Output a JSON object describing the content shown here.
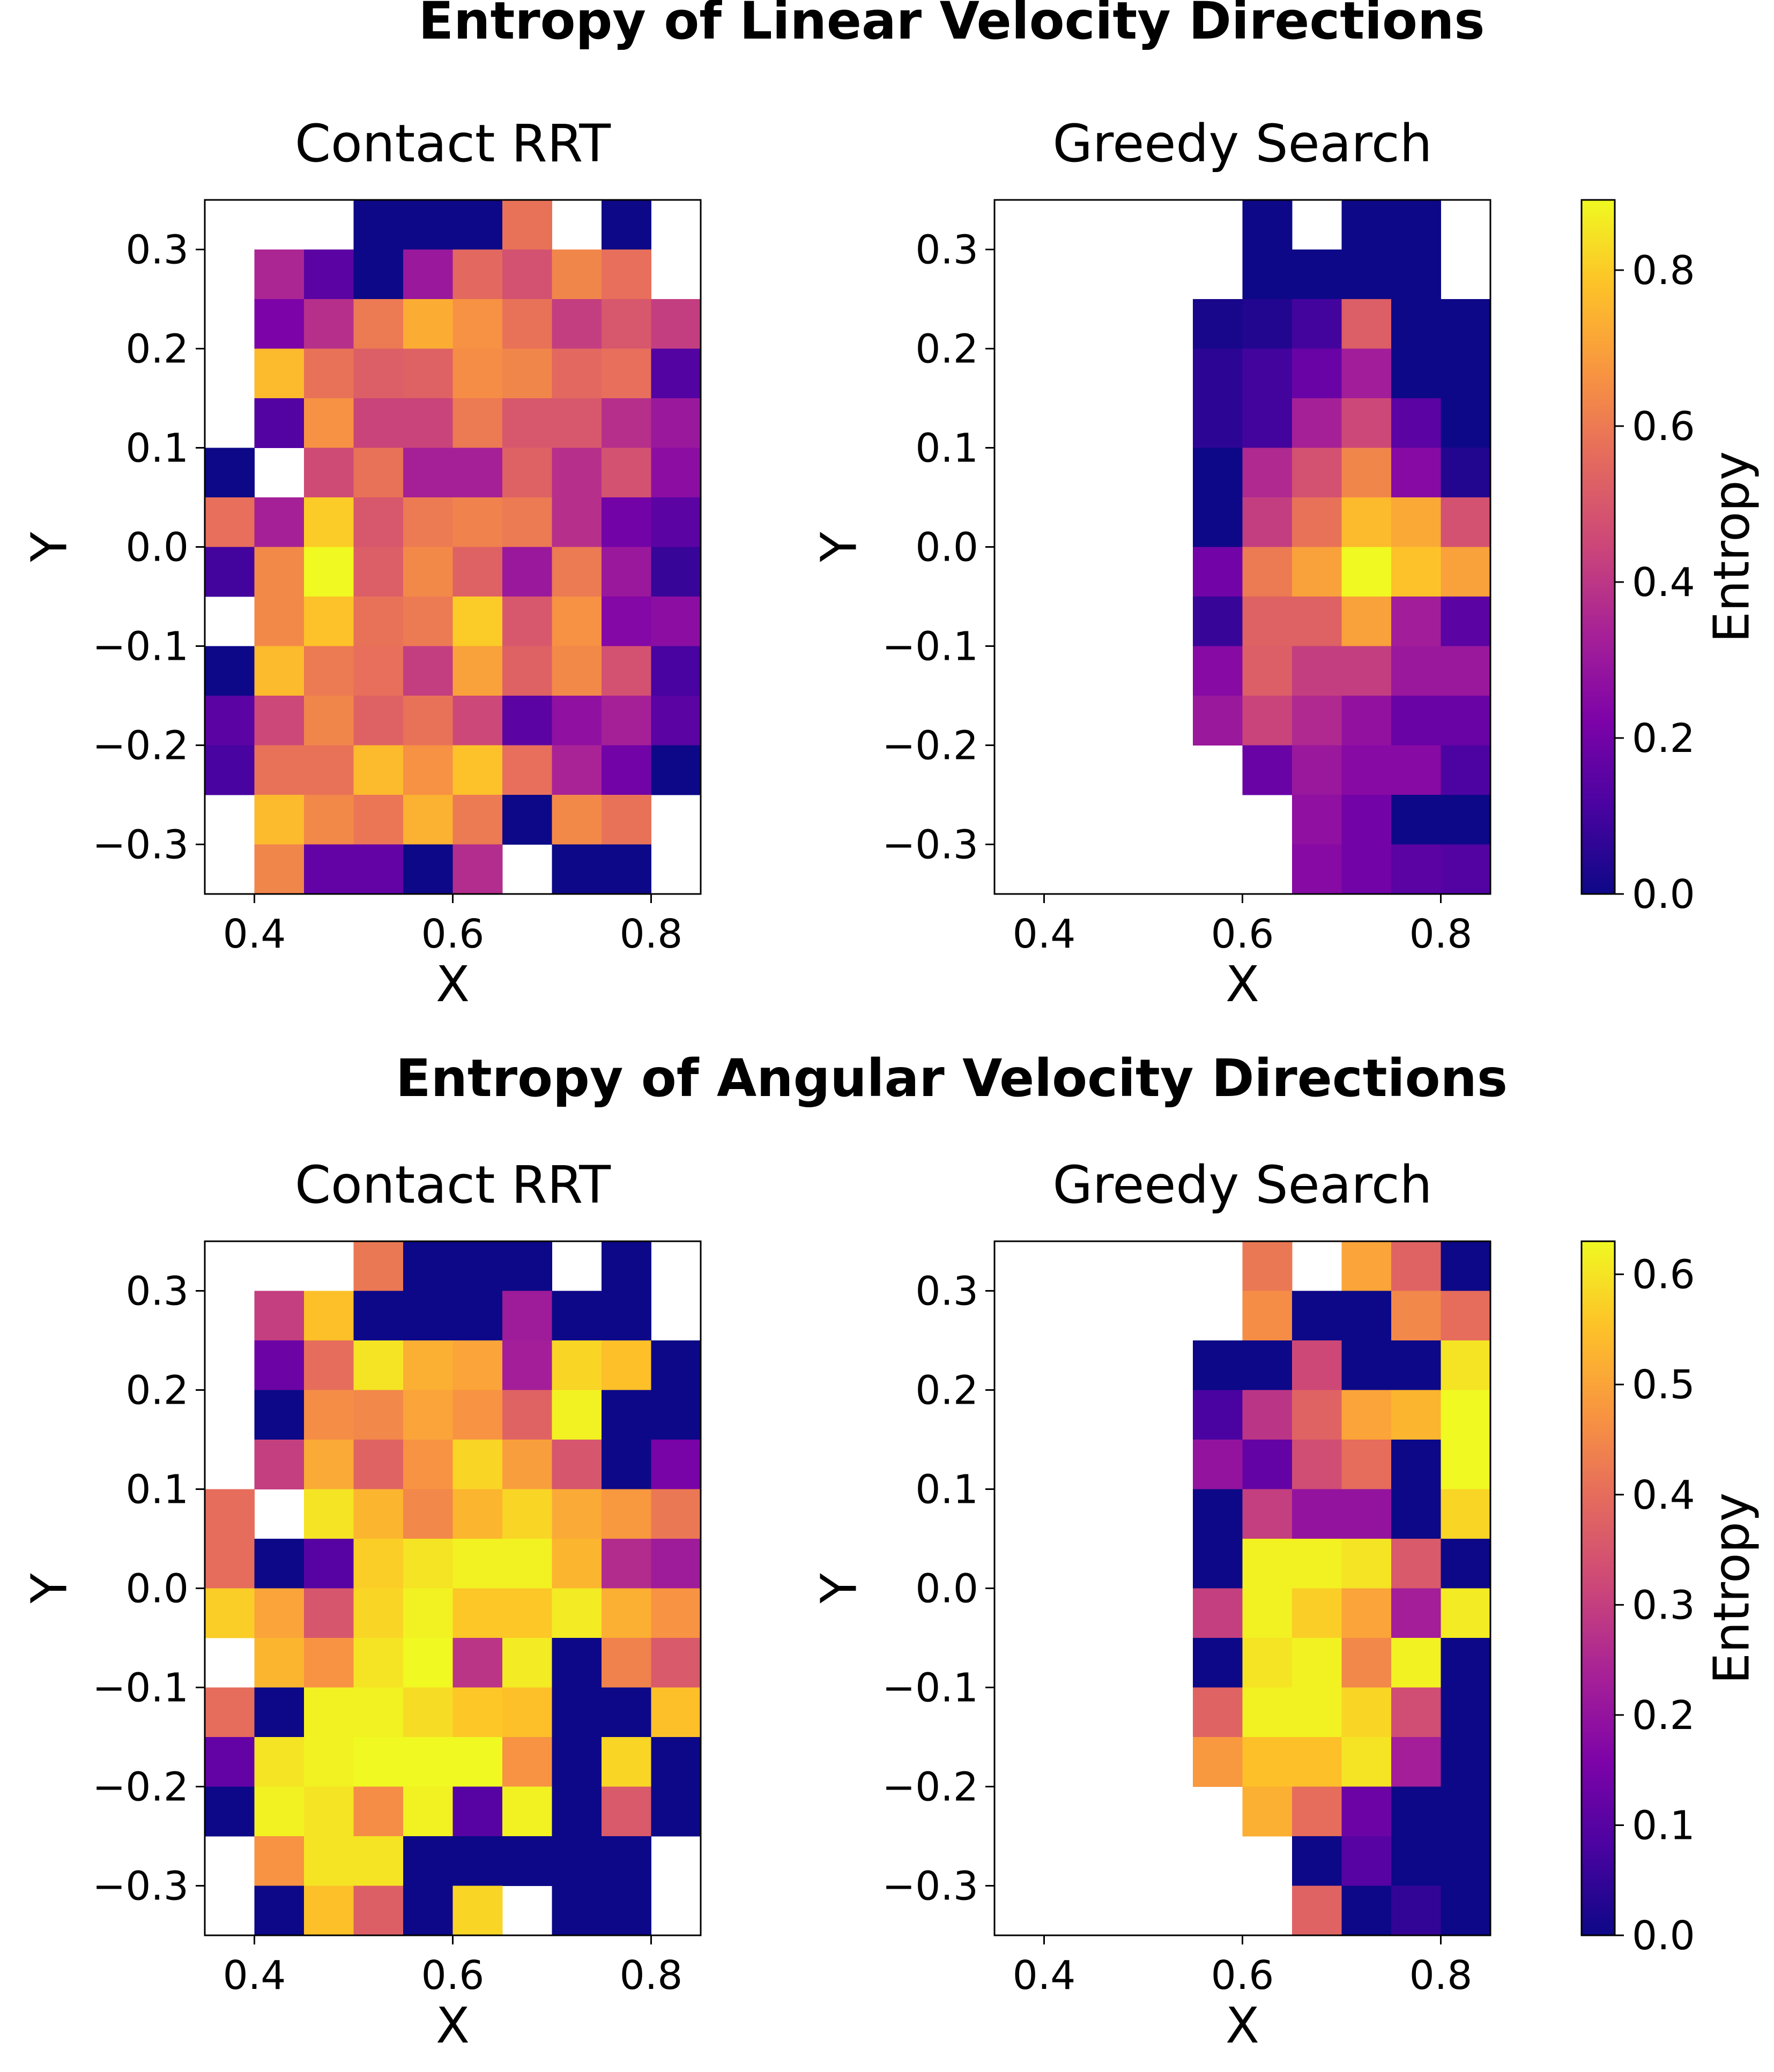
{
  "colormap": "plasma",
  "rows": [
    {
      "title": "Entropy of Linear Velocity Directions",
      "colorbar": {
        "label": "Entropy",
        "range": [
          0,
          0.89
        ],
        "ticks": [
          "0.0",
          "0.2",
          "0.4",
          "0.6",
          "0.8"
        ],
        "tick_values": [
          0,
          0.2,
          0.4,
          0.6,
          0.8
        ]
      }
    },
    {
      "title": "Entropy of Angular Velocity Directions",
      "colorbar": {
        "label": "Entropy",
        "range": [
          0,
          0.63
        ],
        "ticks": [
          "0.0",
          "0.1",
          "0.2",
          "0.3",
          "0.4",
          "0.5",
          "0.6"
        ],
        "tick_values": [
          0,
          0.1,
          0.2,
          0.3,
          0.4,
          0.5,
          0.6
        ]
      }
    }
  ],
  "chart_data": [
    {
      "type": "heatmap",
      "title": "Contact RRT",
      "xlabel": "X",
      "ylabel": "Y",
      "xlim": [
        0.35,
        0.85
      ],
      "ylim": [
        -0.35,
        0.35
      ],
      "x_edges": [
        0.35,
        0.4,
        0.45,
        0.5,
        0.55,
        0.6,
        0.65,
        0.7,
        0.75,
        0.8,
        0.85
      ],
      "y_edges": [
        0.35,
        0.3,
        0.25,
        0.2,
        0.15,
        0.1,
        0.05,
        0.0,
        -0.05,
        -0.1,
        -0.15,
        -0.2,
        -0.25,
        -0.3,
        -0.35
      ],
      "xticks": [
        "0.4",
        "0.6",
        "0.8"
      ],
      "xtick_values": [
        0.4,
        0.6,
        0.8
      ],
      "yticks": [
        "0.3",
        "0.2",
        "0.1",
        "0.0",
        "−0.1",
        "−0.2",
        "−0.3"
      ],
      "ytick_values": [
        0.3,
        0.2,
        0.1,
        0.0,
        -0.1,
        -0.2,
        -0.3
      ],
      "row": 0,
      "col": 0,
      "vmin": 0,
      "vmax": 0.89,
      "values": [
        [
          null,
          null,
          null,
          0.0,
          0.0,
          0.0,
          0.58,
          null,
          0.0,
          null
        ],
        [
          null,
          0.35,
          0.15,
          0.0,
          0.3,
          0.55,
          0.48,
          0.63,
          0.57,
          null
        ],
        [
          null,
          0.22,
          0.38,
          0.6,
          0.73,
          0.66,
          0.58,
          0.42,
          0.5,
          0.42
        ],
        [
          null,
          0.76,
          0.58,
          0.52,
          0.53,
          0.65,
          0.63,
          0.55,
          0.57,
          0.13
        ],
        [
          null,
          0.13,
          0.66,
          0.44,
          0.44,
          0.6,
          0.5,
          0.5,
          0.38,
          0.3
        ],
        [
          0.0,
          null,
          0.46,
          0.58,
          0.33,
          0.33,
          0.53,
          0.38,
          0.48,
          0.26
        ],
        [
          0.57,
          0.33,
          0.8,
          0.5,
          0.6,
          0.62,
          0.6,
          0.38,
          0.2,
          0.15
        ],
        [
          0.1,
          0.64,
          0.89,
          0.52,
          0.64,
          0.53,
          0.3,
          0.6,
          0.3,
          0.08
        ],
        [
          null,
          0.64,
          0.78,
          0.58,
          0.6,
          0.8,
          0.5,
          0.66,
          0.24,
          0.26
        ],
        [
          0.0,
          0.76,
          0.6,
          0.57,
          0.42,
          0.7,
          0.53,
          0.64,
          0.48,
          0.11
        ],
        [
          0.15,
          0.45,
          0.63,
          0.53,
          0.58,
          0.45,
          0.15,
          0.27,
          0.33,
          0.15
        ],
        [
          0.11,
          0.58,
          0.58,
          0.76,
          0.66,
          0.78,
          0.57,
          0.34,
          0.2,
          0.0
        ],
        [
          null,
          0.76,
          0.64,
          0.59,
          0.74,
          0.6,
          0.0,
          0.64,
          0.58,
          null
        ],
        [
          null,
          0.63,
          0.17,
          0.17,
          0.0,
          0.37,
          null,
          0.0,
          0.0,
          null
        ]
      ]
    },
    {
      "type": "heatmap",
      "title": "Greedy Search",
      "xlabel": "X",
      "ylabel": "Y",
      "xlim": [
        0.35,
        0.85
      ],
      "ylim": [
        -0.35,
        0.35
      ],
      "x_edges": [
        0.35,
        0.4,
        0.45,
        0.5,
        0.55,
        0.6,
        0.65,
        0.7,
        0.75,
        0.8,
        0.85
      ],
      "y_edges": [
        0.35,
        0.3,
        0.25,
        0.2,
        0.15,
        0.1,
        0.05,
        0.0,
        -0.05,
        -0.1,
        -0.15,
        -0.2,
        -0.25,
        -0.3,
        -0.35
      ],
      "xticks": [
        "0.4",
        "0.6",
        "0.8"
      ],
      "xtick_values": [
        0.4,
        0.6,
        0.8
      ],
      "yticks": [
        "0.3",
        "0.2",
        "0.1",
        "0.0",
        "−0.1",
        "−0.2",
        "−0.3"
      ],
      "ytick_values": [
        0.3,
        0.2,
        0.1,
        0.0,
        -0.1,
        -0.2,
        -0.3
      ],
      "row": 0,
      "col": 1,
      "vmin": 0,
      "vmax": 0.89,
      "values": [
        [
          null,
          null,
          null,
          null,
          null,
          0.0,
          null,
          0.0,
          0.0,
          null
        ],
        [
          null,
          null,
          null,
          null,
          null,
          0.0,
          0.0,
          0.0,
          0.0,
          null
        ],
        [
          null,
          null,
          null,
          null,
          0.02,
          0.04,
          0.1,
          0.52,
          0.0,
          0.0
        ],
        [
          null,
          null,
          null,
          null,
          0.06,
          0.1,
          0.18,
          0.32,
          0.0,
          0.0
        ],
        [
          null,
          null,
          null,
          null,
          0.06,
          0.1,
          0.33,
          0.45,
          0.15,
          0.0
        ],
        [
          null,
          null,
          null,
          null,
          0.0,
          0.36,
          0.48,
          0.63,
          0.25,
          0.04
        ],
        [
          null,
          null,
          null,
          null,
          0.0,
          0.42,
          0.58,
          0.76,
          0.72,
          0.48
        ],
        [
          null,
          null,
          null,
          null,
          0.2,
          0.6,
          0.7,
          0.89,
          0.78,
          0.7
        ],
        [
          null,
          null,
          null,
          null,
          0.08,
          0.53,
          0.53,
          0.7,
          0.32,
          0.15
        ],
        [
          null,
          null,
          null,
          null,
          0.25,
          0.52,
          0.42,
          0.42,
          0.3,
          0.3
        ],
        [
          null,
          null,
          null,
          null,
          0.3,
          0.44,
          0.36,
          0.28,
          0.18,
          0.18
        ],
        [
          null,
          null,
          null,
          null,
          null,
          0.18,
          0.3,
          0.25,
          0.25,
          0.12
        ],
        [
          null,
          null,
          null,
          null,
          null,
          null,
          0.27,
          0.2,
          0.0,
          0.0
        ],
        [
          null,
          null,
          null,
          null,
          null,
          null,
          0.25,
          0.2,
          0.15,
          0.13
        ]
      ]
    },
    {
      "type": "heatmap",
      "title": "Contact RRT",
      "xlabel": "X",
      "ylabel": "Y",
      "xlim": [
        0.35,
        0.85
      ],
      "ylim": [
        -0.35,
        0.35
      ],
      "x_edges": [
        0.35,
        0.4,
        0.45,
        0.5,
        0.55,
        0.6,
        0.65,
        0.7,
        0.75,
        0.8,
        0.85
      ],
      "y_edges": [
        0.35,
        0.3,
        0.25,
        0.2,
        0.15,
        0.1,
        0.05,
        0.0,
        -0.05,
        -0.1,
        -0.15,
        -0.2,
        -0.25,
        -0.3,
        -0.35
      ],
      "xticks": [
        "0.4",
        "0.6",
        "0.8"
      ],
      "xtick_values": [
        0.4,
        0.6,
        0.8
      ],
      "yticks": [
        "0.3",
        "0.2",
        "0.1",
        "0.0",
        "−0.1",
        "−0.2",
        "−0.3"
      ],
      "ytick_values": [
        0.3,
        0.2,
        0.1,
        0.0,
        -0.1,
        -0.2,
        -0.3
      ],
      "row": 1,
      "col": 0,
      "vmin": 0,
      "vmax": 0.63,
      "values": [
        [
          null,
          null,
          null,
          0.42,
          0.0,
          0.0,
          0.0,
          null,
          0.0,
          null
        ],
        [
          null,
          0.3,
          0.55,
          0.0,
          0.0,
          0.0,
          0.22,
          0.0,
          0.0,
          null
        ],
        [
          null,
          0.13,
          0.4,
          0.6,
          0.52,
          0.5,
          0.23,
          0.58,
          0.55,
          0.0
        ],
        [
          null,
          0.0,
          0.46,
          0.45,
          0.5,
          0.47,
          0.38,
          0.62,
          0.0,
          0.0
        ],
        [
          null,
          0.3,
          0.51,
          0.38,
          0.47,
          0.58,
          0.49,
          0.35,
          0.0,
          0.15
        ],
        [
          0.4,
          null,
          0.6,
          0.53,
          0.45,
          0.53,
          0.58,
          0.51,
          0.48,
          0.42
        ],
        [
          0.4,
          0.0,
          0.1,
          0.57,
          0.6,
          0.62,
          0.62,
          0.53,
          0.26,
          0.22
        ],
        [
          0.57,
          0.5,
          0.35,
          0.58,
          0.62,
          0.56,
          0.56,
          0.61,
          0.52,
          0.47
        ],
        [
          null,
          0.53,
          0.47,
          0.6,
          0.63,
          0.28,
          0.61,
          0.0,
          0.44,
          0.36
        ],
        [
          0.4,
          0.0,
          0.62,
          0.62,
          0.59,
          0.56,
          0.55,
          0.0,
          0.0,
          0.55
        ],
        [
          0.12,
          0.6,
          0.62,
          0.63,
          0.63,
          0.63,
          0.47,
          0.0,
          0.58,
          0.0
        ],
        [
          0.0,
          0.62,
          0.6,
          0.46,
          0.62,
          0.1,
          0.62,
          0.0,
          0.36,
          0.0
        ],
        [
          null,
          0.47,
          0.6,
          0.6,
          0.0,
          0.0,
          0.0,
          0.0,
          0.0,
          null
        ],
        [
          null,
          0.0,
          0.55,
          0.37,
          0.0,
          0.58,
          null,
          0.0,
          0.0,
          null
        ]
      ]
    },
    {
      "type": "heatmap",
      "title": "Greedy Search",
      "xlabel": "X",
      "ylabel": "Y",
      "xlim": [
        0.35,
        0.85
      ],
      "ylim": [
        -0.35,
        0.35
      ],
      "x_edges": [
        0.35,
        0.4,
        0.45,
        0.5,
        0.55,
        0.6,
        0.65,
        0.7,
        0.75,
        0.8,
        0.85
      ],
      "y_edges": [
        0.35,
        0.3,
        0.25,
        0.2,
        0.15,
        0.1,
        0.05,
        0.0,
        -0.05,
        -0.1,
        -0.15,
        -0.2,
        -0.25,
        -0.3,
        -0.35
      ],
      "xticks": [
        "0.4",
        "0.6",
        "0.8"
      ],
      "xtick_values": [
        0.4,
        0.6,
        0.8
      ],
      "yticks": [
        "0.3",
        "0.2",
        "0.1",
        "0.0",
        "−0.1",
        "−0.2",
        "−0.3"
      ],
      "ytick_values": [
        0.3,
        0.2,
        0.1,
        0.0,
        -0.1,
        -0.2,
        -0.3
      ],
      "row": 1,
      "col": 1,
      "vmin": 0,
      "vmax": 0.63,
      "values": [
        [
          null,
          null,
          null,
          null,
          null,
          0.42,
          null,
          0.5,
          0.38,
          0.0
        ],
        [
          null,
          null,
          null,
          null,
          null,
          0.46,
          0.0,
          0.0,
          0.45,
          0.4
        ],
        [
          null,
          null,
          null,
          null,
          0.0,
          0.0,
          0.32,
          0.0,
          0.0,
          0.6
        ],
        [
          null,
          null,
          null,
          null,
          0.08,
          0.28,
          0.38,
          0.5,
          0.53,
          0.63
        ],
        [
          null,
          null,
          null,
          null,
          0.2,
          0.12,
          0.33,
          0.4,
          0.0,
          0.63
        ],
        [
          null,
          null,
          null,
          null,
          0.0,
          0.3,
          0.2,
          0.2,
          0.0,
          0.58
        ],
        [
          null,
          null,
          null,
          null,
          0.0,
          0.62,
          0.62,
          0.6,
          0.36,
          0.0
        ],
        [
          null,
          null,
          null,
          null,
          0.3,
          0.62,
          0.57,
          0.5,
          0.23,
          0.61
        ],
        [
          null,
          null,
          null,
          null,
          0.0,
          0.6,
          0.62,
          0.45,
          0.62,
          0.0
        ],
        [
          null,
          null,
          null,
          null,
          0.38,
          0.62,
          0.62,
          0.58,
          0.33,
          0.0
        ],
        [
          null,
          null,
          null,
          null,
          0.48,
          0.55,
          0.55,
          0.6,
          0.23,
          0.0
        ],
        [
          null,
          null,
          null,
          null,
          null,
          0.52,
          0.4,
          0.13,
          0.0,
          0.0
        ],
        [
          null,
          null,
          null,
          null,
          null,
          null,
          0.0,
          0.1,
          0.0,
          0.0
        ],
        [
          null,
          null,
          null,
          null,
          null,
          null,
          0.38,
          0.0,
          0.05,
          0.0
        ]
      ]
    }
  ]
}
